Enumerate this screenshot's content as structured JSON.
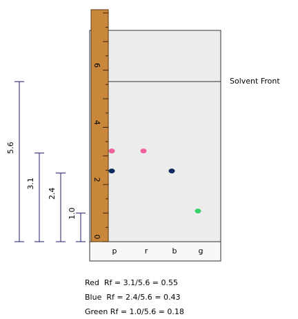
{
  "ruler_labels": [
    "0",
    "2",
    "4",
    "6"
  ],
  "solvent_front": "Solvent Front",
  "lanes": [
    "p",
    "r",
    "b",
    "g"
  ],
  "spots": [
    {
      "lane": "p",
      "distance": 3.1,
      "color": "#f0609a"
    },
    {
      "lane": "p",
      "distance": 2.4,
      "color": "#0d2a5c"
    },
    {
      "lane": "r",
      "distance": 3.1,
      "color": "#f0609a"
    },
    {
      "lane": "b",
      "distance": 2.4,
      "color": "#0d2a5c"
    },
    {
      "lane": "g",
      "distance": 1.0,
      "color": "#3ad06a"
    }
  ],
  "measurements": [
    "5.6",
    "3.1",
    "2.4",
    "1.0"
  ],
  "results": [
    "Red  Rf = 3.1/5.6 = 0.55",
    "Blue  Rf = 2.4/5.6 = 0.43",
    "Green Rf = 1.0/5.6 = 0.18"
  ]
}
